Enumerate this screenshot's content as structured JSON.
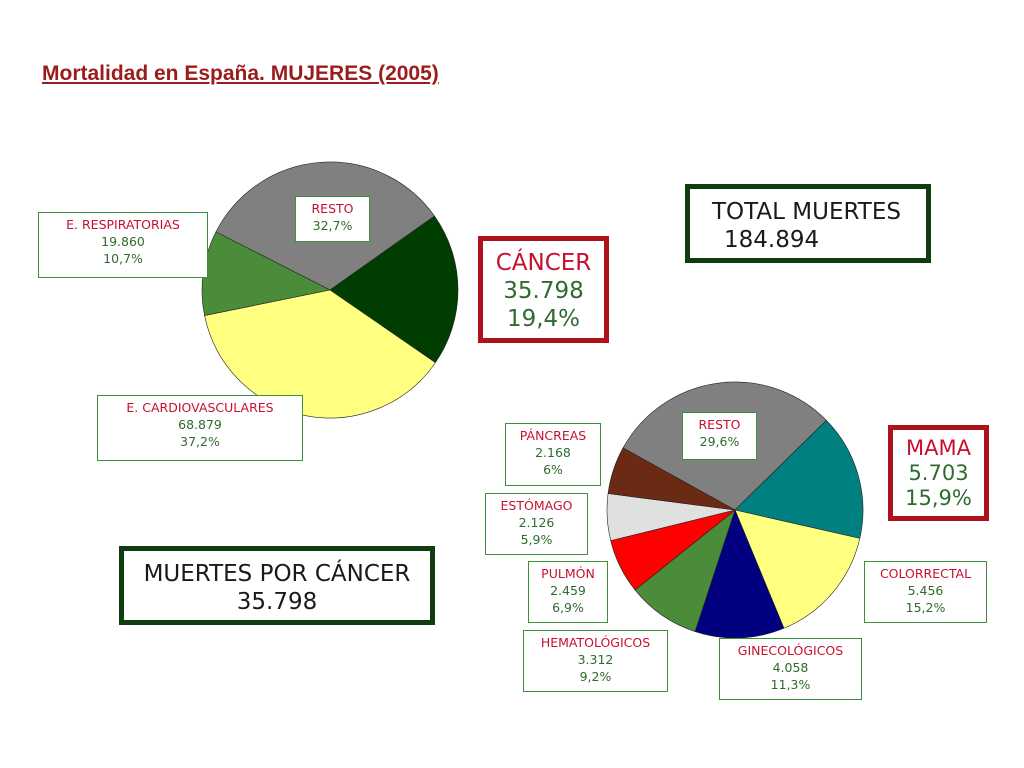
{
  "title": "Mortalidad en España. MUJERES (2005)",
  "chart_data": [
    {
      "type": "pie",
      "slices": [
        {
          "name": "RESTO",
          "percent": 32.7,
          "color": "#808080",
          "label_percent": "32,7%"
        },
        {
          "name": "CÁNCER",
          "value": 35798,
          "percent": 19.4,
          "color": "#003d00",
          "label_value": "35.798",
          "label_percent": "19,4%"
        },
        {
          "name": "E. CARDIOVASCULARES",
          "value": 68879,
          "percent": 37.2,
          "color": "#ffff80",
          "label_value": "68.879",
          "label_percent": "37,2%"
        },
        {
          "name": "E. RESPIRATORIAS",
          "value": 19860,
          "percent": 10.7,
          "color": "#4a8c3a",
          "label_value": "19.860",
          "label_percent": "10,7%"
        }
      ]
    },
    {
      "type": "pie",
      "slices": [
        {
          "name": "RESTO",
          "percent": 29.6,
          "color": "#808080",
          "label_percent": "29,6%"
        },
        {
          "name": "MAMA",
          "value": 5703,
          "percent": 15.9,
          "color": "#008080",
          "label_value": "5.703",
          "label_percent": "15,9%"
        },
        {
          "name": "COLORRECTAL",
          "value": 5456,
          "percent": 15.2,
          "color": "#ffff80",
          "label_value": "5.456",
          "label_percent": "15,2%"
        },
        {
          "name": "GINECOLÓGICOS",
          "value": 4058,
          "percent": 11.3,
          "color": "#000080",
          "label_value": "4.058",
          "label_percent": "11,3%"
        },
        {
          "name": "HEMATOLÓGICOS",
          "value": 3312,
          "percent": 9.2,
          "color": "#4a8c3a",
          "label_value": "3.312",
          "label_percent": "9,2%"
        },
        {
          "name": "PULMÓN",
          "value": 2459,
          "percent": 6.9,
          "color": "#ff0000",
          "label_value": "2.459",
          "label_percent": "6,9%"
        },
        {
          "name": "ESTÓMAGO",
          "value": 2126,
          "percent": 5.9,
          "color": "#e0e0e0",
          "label_value": "2.126",
          "label_percent": "5,9%"
        },
        {
          "name": "PÁNCREAS",
          "value": 2168,
          "percent": 6.0,
          "color": "#6b2a14",
          "label_value": "2.168",
          "label_percent": "6%"
        }
      ]
    }
  ],
  "boxes": {
    "total": {
      "line1": "TOTAL MUERTES",
      "line2": "184.894"
    },
    "cancer_deaths": {
      "line1": "MUERTES POR CÁNCER",
      "line2": "35.798"
    }
  }
}
